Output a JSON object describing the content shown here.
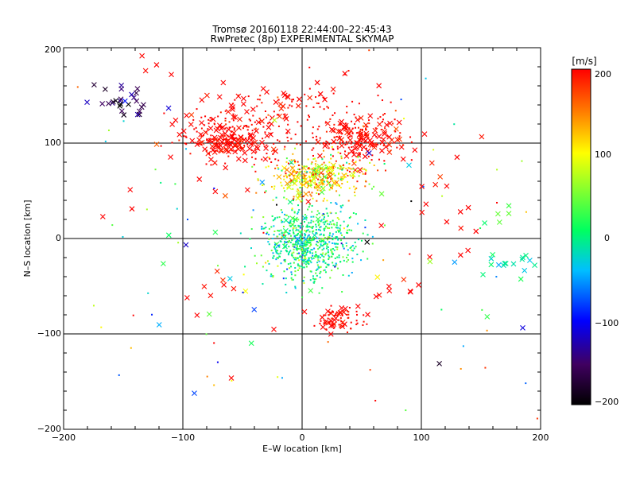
{
  "chart_data": {
    "type": "scatter",
    "title": "Tromsø 20160118 22:44:00–22:45:43",
    "subtitle": "RwPretec (8p) EXPERIMENTAL SKYMAP",
    "xlabel": "E–W location [km]",
    "ylabel": "N–S location [km]",
    "xlim": [
      -200,
      200
    ],
    "ylim": [
      -200,
      200
    ],
    "xticks": [
      "−200",
      "−100",
      "0",
      "100",
      "200"
    ],
    "yticks": [
      "−200",
      "−100",
      "0",
      "100",
      "200"
    ],
    "grid": true,
    "colorbar": {
      "label": "[m/s]",
      "range": [
        -200,
        200
      ],
      "ticks": [
        "200",
        "100",
        "0",
        "−100",
        "−200"
      ],
      "colormap": [
        "#000000",
        "#400060",
        "#0000ff",
        "#00bfff",
        "#00ff60",
        "#ffff00",
        "#ff8000",
        "#ff0000"
      ]
    },
    "clusters": [
      {
        "marker": "x",
        "x": 0,
        "y": 0,
        "sx": 12,
        "sy": 15,
        "v": 0,
        "vs": 40,
        "n": 20
      },
      {
        "marker": "dot",
        "x": 5,
        "y": -5,
        "sx": 20,
        "sy": 20,
        "v": 5,
        "vs": 35,
        "n": 650
      },
      {
        "marker": "x",
        "x": 10,
        "y": 62,
        "sx": 14,
        "sy": 10,
        "v": 100,
        "vs": 40,
        "n": 55
      },
      {
        "marker": "dot",
        "x": 15,
        "y": 65,
        "sx": 20,
        "sy": 12,
        "v": 110,
        "vs": 50,
        "n": 320
      },
      {
        "marker": "x",
        "x": -60,
        "y": 105,
        "sx": 20,
        "sy": 12,
        "v": 200,
        "vs": 10,
        "n": 95
      },
      {
        "marker": "dot",
        "x": -55,
        "y": 105,
        "sx": 25,
        "sy": 15,
        "v": 200,
        "vs": 10,
        "n": 150
      },
      {
        "marker": "x",
        "x": 45,
        "y": 105,
        "sx": 20,
        "sy": 12,
        "v": 200,
        "vs": 10,
        "n": 80
      },
      {
        "marker": "dot",
        "x": 45,
        "y": 108,
        "sx": 22,
        "sy": 13,
        "v": 200,
        "vs": 10,
        "n": 130
      },
      {
        "marker": "x",
        "x": -25,
        "y": 140,
        "sx": 40,
        "sy": 15,
        "v": 200,
        "vs": 10,
        "n": 45
      },
      {
        "marker": "dot",
        "x": 5,
        "y": 140,
        "sx": 30,
        "sy": 15,
        "v": 200,
        "vs": 10,
        "n": 55
      },
      {
        "marker": "x",
        "x": -150,
        "y": 145,
        "sx": 12,
        "sy": 10,
        "v": -160,
        "vs": 30,
        "n": 28
      },
      {
        "marker": "x",
        "x": -125,
        "y": 175,
        "sx": 12,
        "sy": 10,
        "v": 200,
        "vs": 10,
        "n": 4
      },
      {
        "marker": "x",
        "x": 30,
        "y": -85,
        "sx": 12,
        "sy": 8,
        "v": 200,
        "vs": 10,
        "n": 25
      },
      {
        "marker": "dot",
        "x": 30,
        "y": -85,
        "sx": 12,
        "sy": 8,
        "v": 200,
        "vs": 10,
        "n": 60
      },
      {
        "marker": "x",
        "x": 120,
        "y": 45,
        "sx": 20,
        "sy": 25,
        "v": 200,
        "vs": 10,
        "n": 16
      },
      {
        "marker": "x",
        "x": 180,
        "y": -30,
        "sx": 15,
        "sy": 8,
        "v": -10,
        "vs": 15,
        "n": 20
      },
      {
        "marker": "x",
        "x": 165,
        "y": 25,
        "sx": 6,
        "sy": 8,
        "v": 30,
        "vs": 15,
        "n": 5
      },
      {
        "marker": "x",
        "x": -80,
        "y": -55,
        "sx": 15,
        "sy": 12,
        "v": 200,
        "vs": 10,
        "n": 8
      },
      {
        "marker": "x",
        "x": 75,
        "y": -55,
        "sx": 15,
        "sy": 15,
        "v": 200,
        "vs": 10,
        "n": 8
      },
      {
        "marker": "x",
        "x": -90,
        "y": 40,
        "sx": 30,
        "sy": 30,
        "v": 200,
        "vs": 10,
        "n": 8
      },
      {
        "marker": "x",
        "x": 0,
        "y": 0,
        "sx": 120,
        "sy": 110,
        "v": 60,
        "vs": 130,
        "n": 45
      },
      {
        "marker": "dot",
        "x": 0,
        "y": 0,
        "sx": 130,
        "sy": 110,
        "v": 60,
        "vs": 130,
        "n": 110
      }
    ]
  }
}
